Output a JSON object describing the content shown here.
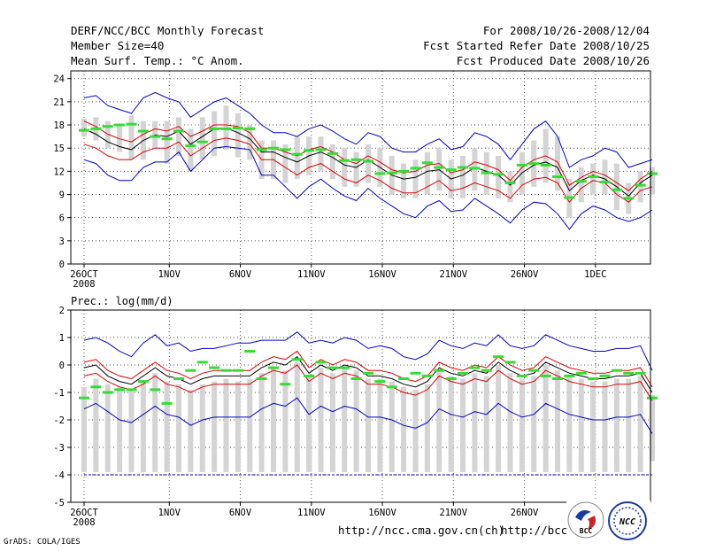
{
  "header": {
    "title": "DERF/NCC/BCC Monthly Forecast",
    "member_size": "Member Size=40",
    "variable": "Mean Surf. Temp.: °C Anom.",
    "forecast_period": "For 2008/10/26-2008/12/04",
    "started_refer_date": "Fcst Started Refer Date 2008/10/25",
    "produced_date": "Fcst Produced Date 2008/10/26"
  },
  "footer": {
    "url_left": "http://ncc.cma.gov.cn(ch)",
    "url_right": "http://bcc.c",
    "credit": "GrADS: COLA/IGES",
    "logo_bcc": "BCC",
    "logo_ncc": "NCC"
  },
  "colors": {
    "spread": "#0000cc",
    "sigma": "#dd0000",
    "mean": "#000000",
    "box": "#d4d4d4",
    "median": "#33dd33",
    "dashed": "#0000aa",
    "grid": "#555555"
  },
  "chart_data": [
    {
      "type": "line",
      "title": "Mean Surf. Temp.: °C Anom.",
      "x_tick_labels": [
        "26OCT",
        "1NOV",
        "6NOV",
        "11NOV",
        "16NOV",
        "21NOV",
        "26NOV",
        "1DEC"
      ],
      "x_tick_days": [
        0,
        6,
        11,
        16,
        21,
        26,
        31,
        36
      ],
      "x_year_label": "2008",
      "days": 40,
      "ylim": [
        0,
        25
      ],
      "yticks": [
        0,
        3,
        6,
        9,
        12,
        15,
        18,
        21,
        24
      ],
      "series": [
        {
          "name": "max",
          "values": [
            13.5,
            13,
            11.5,
            10.8,
            10.8,
            12.5,
            13.2,
            13.2,
            14.5,
            12,
            13.5,
            15,
            15.2,
            15,
            14.8,
            11.5,
            11.5,
            10,
            8.5,
            10,
            11,
            9.8,
            8.8,
            8.2,
            9.8,
            8.5,
            7.5,
            6.5,
            6,
            7.5,
            8.2,
            6.8,
            7,
            8.5,
            7.5,
            6.5,
            5.3,
            7,
            8,
            7.8,
            6.5,
            4.5,
            6.5,
            7.5,
            7,
            6,
            5.5,
            6,
            7
          ]
        },
        {
          "name": "lower",
          "values": [
            15.5,
            15,
            14,
            13.5,
            13.5,
            14.5,
            15,
            15,
            15.8,
            14,
            15,
            16,
            16.3,
            16,
            15.5,
            13.5,
            13.5,
            12.5,
            11.5,
            12.5,
            13,
            12,
            11,
            10.5,
            11.5,
            10.8,
            9.8,
            9.2,
            9.2,
            10,
            10.8,
            9.5,
            9.8,
            10.5,
            10,
            9.5,
            8.5,
            10.2,
            11,
            11.2,
            10.5,
            8,
            9.8,
            10.8,
            10.5,
            9,
            8,
            9.5,
            10
          ]
        },
        {
          "name": "mean",
          "values": [
            17.5,
            16.8,
            15.8,
            15.2,
            14.8,
            16,
            16.7,
            16.5,
            17.2,
            15.5,
            16.5,
            17.5,
            17.6,
            17,
            16.2,
            14.5,
            14.5,
            13.8,
            13.2,
            14,
            14.5,
            13.8,
            12.8,
            12.5,
            13.5,
            12.5,
            11.5,
            11,
            11.2,
            12,
            12.2,
            11,
            11.5,
            12.5,
            12,
            11.5,
            10.2,
            11.8,
            12.8,
            13.2,
            12.5,
            9.5,
            10.8,
            11.5,
            11,
            10,
            8.8,
            10.5,
            11.5
          ]
        },
        {
          "name": "upper",
          "values": [
            18.5,
            17.8,
            16.8,
            16.2,
            15.8,
            16.8,
            17.5,
            17.2,
            17.8,
            16.5,
            17.2,
            18,
            18,
            17.8,
            17,
            15,
            15,
            14.5,
            14,
            14.8,
            15.2,
            14.5,
            13.5,
            13,
            14,
            13.2,
            12.2,
            11.8,
            12,
            12.8,
            13,
            11.8,
            12.2,
            13.2,
            12.8,
            12.2,
            10.8,
            12.5,
            13.5,
            14,
            13.2,
            10.2,
            11.2,
            12,
            11.5,
            10.5,
            9.5,
            11,
            12
          ]
        },
        {
          "name": "min",
          "values": [
            21.5,
            21.8,
            20.5,
            20,
            19.5,
            21.5,
            22.2,
            21.5,
            21,
            19,
            20,
            21,
            21.5,
            20.5,
            19.5,
            18,
            17,
            17,
            16.5,
            17.5,
            18,
            17.2,
            16.2,
            15.5,
            17,
            16.5,
            15,
            14.5,
            14.5,
            15.5,
            16.2,
            14.8,
            15.2,
            17,
            16.5,
            15.5,
            13.5,
            15.5,
            17.5,
            18.5,
            16.5,
            12.5,
            13.5,
            14,
            15,
            14.5,
            12.5,
            13,
            13.5
          ]
        }
      ],
      "boxes_low": [
        16.5,
        16,
        15,
        14.5,
        13.5,
        13.5,
        15,
        13,
        14,
        12,
        13.5,
        14,
        14.8,
        13.8,
        13.5,
        11,
        11,
        10.5,
        11,
        11.5,
        12,
        11,
        10,
        10,
        10.5,
        10,
        9,
        8.5,
        8.5,
        9,
        9.5,
        8.5,
        8.5,
        9.5,
        9,
        8.5,
        8,
        9,
        10,
        10.5,
        9.5,
        6,
        8,
        9,
        9,
        7,
        6.5,
        8,
        9
      ],
      "boxes_high": [
        18.8,
        19,
        18.5,
        18,
        19.2,
        18.5,
        18.5,
        18.5,
        19,
        17.5,
        19,
        19.8,
        20.5,
        19.5,
        18,
        16,
        16,
        15.5,
        16.5,
        16.5,
        16.5,
        15.5,
        15,
        14.5,
        15.5,
        15,
        14,
        13,
        13.5,
        14.5,
        15,
        13.5,
        14,
        15,
        14.5,
        14,
        12,
        14.5,
        16,
        17.5,
        16.5,
        11,
        12.5,
        13,
        13.5,
        13,
        10.5,
        12,
        12.5
      ],
      "median_values": [
        17.3,
        17.5,
        17.8,
        18,
        18.1,
        17.2,
        16.5,
        16.2,
        17.2,
        15.3,
        15.8,
        17.5,
        17.5,
        17.6,
        17.5,
        14.8,
        15,
        14.8,
        14.2,
        14.7,
        14.8,
        14.3,
        13.4,
        13.5,
        13.3,
        11.7,
        11.8,
        12,
        12.4,
        13.1,
        12.5,
        12.2,
        12.5,
        12.4,
        11.8,
        11.6,
        10.5,
        12.8,
        13,
        12.8,
        11.3,
        8.6,
        10.7,
        11.3,
        10.6,
        9.6,
        8.5,
        10.2,
        11.7
      ]
    },
    {
      "type": "line",
      "title": "Prec.: log(mm/d)",
      "x_tick_labels": [
        "26OCT",
        "1NOV",
        "6NOV",
        "11NOV",
        "16NOV",
        "21NOV",
        "26NOV",
        "1DEC"
      ],
      "x_tick_days": [
        0,
        6,
        11,
        16,
        21,
        26,
        31,
        36
      ],
      "x_year_label": "2008",
      "days": 40,
      "ylim": [
        -5,
        2
      ],
      "yticks": [
        -5,
        -4,
        -3,
        -2,
        -1,
        0,
        1,
        2
      ],
      "dashed_level": -4,
      "series": [
        {
          "name": "max",
          "values": [
            0.9,
            1,
            0.8,
            0.5,
            0.3,
            0.8,
            1.1,
            0.7,
            0.8,
            0.5,
            0.6,
            0.6,
            0.7,
            0.8,
            0.8,
            0.9,
            0.9,
            0.9,
            1.2,
            0.8,
            0.9,
            0.8,
            1,
            0.9,
            0.6,
            0.7,
            0.6,
            0.3,
            0.2,
            0.4,
            0.9,
            0.7,
            0.6,
            0.8,
            0.7,
            1.1,
            0.7,
            0.6,
            0.7,
            1.1,
            0.9,
            0.7,
            0.6,
            0.5,
            0.5,
            0.6,
            0.6,
            0.7,
            -0.2
          ]
        },
        {
          "name": "upper",
          "values": [
            0.1,
            0.2,
            -0.2,
            -0.4,
            -0.5,
            -0.2,
            0.1,
            -0.2,
            -0.3,
            -0.5,
            -0.3,
            -0.2,
            -0.2,
            -0.2,
            -0.2,
            0.1,
            0.3,
            0.2,
            0.5,
            -0.1,
            0.2,
            0,
            0.2,
            0.1,
            -0.2,
            -0.2,
            -0.3,
            -0.5,
            -0.6,
            -0.4,
            0.1,
            -0.1,
            -0.2,
            0,
            -0.1,
            0.3,
            0,
            -0.2,
            -0.1,
            0.3,
            0.1,
            -0.1,
            -0.2,
            -0.3,
            -0.3,
            -0.2,
            -0.2,
            -0.1,
            -0.8
          ]
        },
        {
          "name": "mean",
          "values": [
            -0.1,
            0,
            -0.4,
            -0.6,
            -0.7,
            -0.4,
            -0.1,
            -0.4,
            -0.5,
            -0.7,
            -0.5,
            -0.4,
            -0.4,
            -0.4,
            -0.4,
            -0.1,
            0.1,
            0,
            0.3,
            -0.3,
            0,
            -0.2,
            0,
            -0.1,
            -0.4,
            -0.4,
            -0.5,
            -0.7,
            -0.8,
            -0.6,
            -0.1,
            -0.3,
            -0.4,
            -0.2,
            -0.3,
            0.1,
            -0.2,
            -0.4,
            -0.3,
            0.1,
            -0.1,
            -0.3,
            -0.4,
            -0.5,
            -0.5,
            -0.4,
            -0.4,
            -0.3,
            -1
          ]
        },
        {
          "name": "lower",
          "values": [
            -0.4,
            -0.3,
            -0.6,
            -0.8,
            -0.9,
            -0.7,
            -0.4,
            -0.7,
            -0.8,
            -1,
            -0.8,
            -0.7,
            -0.7,
            -0.7,
            -0.7,
            -0.4,
            -0.2,
            -0.3,
            0,
            -0.6,
            -0.3,
            -0.5,
            -0.3,
            -0.4,
            -0.7,
            -0.7,
            -0.8,
            -1,
            -1.1,
            -0.9,
            -0.4,
            -0.6,
            -0.7,
            -0.5,
            -0.6,
            -0.2,
            -0.5,
            -0.7,
            -0.6,
            -0.2,
            -0.4,
            -0.6,
            -0.7,
            -0.8,
            -0.8,
            -0.7,
            -0.7,
            -0.6,
            -1.3
          ]
        },
        {
          "name": "min",
          "values": [
            -1.6,
            -1.4,
            -1.7,
            -2,
            -2.1,
            -1.8,
            -1.5,
            -1.8,
            -1.9,
            -2.2,
            -2,
            -1.9,
            -1.9,
            -1.9,
            -1.9,
            -1.6,
            -1.4,
            -1.5,
            -1.2,
            -1.8,
            -1.5,
            -1.7,
            -1.5,
            -1.6,
            -1.9,
            -1.9,
            -2,
            -2.2,
            -2.3,
            -2.1,
            -1.6,
            -1.8,
            -1.9,
            -1.7,
            -1.8,
            -1.4,
            -1.7,
            -1.9,
            -1.8,
            -1.4,
            -1.6,
            -1.8,
            -1.9,
            -2,
            -2,
            -1.9,
            -1.9,
            -1.8,
            -2.5
          ]
        }
      ],
      "boxes_low": [
        -3.9,
        -3.9,
        -3.9,
        -3.9,
        -3.9,
        -3.9,
        -3.9,
        -3.9,
        -3.9,
        -3.9,
        -3.9,
        -3.9,
        -3.9,
        -3.9,
        -3.9,
        -3.9,
        -3.9,
        -3.9,
        -3.9,
        -3.9,
        -3.9,
        -3.9,
        -3.9,
        -3.9,
        -3.9,
        -3.9,
        -3.9,
        -3.9,
        -3.9,
        -3.9,
        -3.9,
        -3.9,
        -3.9,
        -3.9,
        -3.9,
        -3.9,
        -3.9,
        -3.9,
        -3.9,
        -3.9,
        -3.9,
        -3.9,
        -3.9,
        -3.9,
        -3.9,
        -3.9,
        -3.9,
        -3.9,
        -3.5
      ],
      "boxes_high": [
        -0.8,
        -0.5,
        -0.7,
        -0.8,
        -0.9,
        -0.6,
        -0.3,
        -0.6,
        -0.7,
        -0.9,
        -0.7,
        -0.6,
        -0.5,
        -0.6,
        -0.5,
        -0.3,
        -0.1,
        -0.2,
        0.1,
        -0.4,
        -0.1,
        -0.3,
        -0.1,
        -0.2,
        -0.5,
        -0.5,
        -0.6,
        -0.8,
        -0.9,
        -0.7,
        -0.2,
        -0.4,
        -0.5,
        -0.3,
        -0.4,
        0,
        -0.3,
        -0.5,
        -0.4,
        0,
        -0.2,
        -0.4,
        -0.5,
        -0.6,
        -0.6,
        -0.5,
        -0.5,
        -0.4,
        -1.1
      ],
      "median_values": [
        -1.2,
        -0.8,
        -1,
        -0.9,
        -0.9,
        -0.6,
        -0.9,
        -1.4,
        -0.5,
        -0.2,
        0.1,
        -0.1,
        -0.2,
        -0.2,
        0.5,
        -0.5,
        -0.1,
        -0.7,
        0.2,
        -0.4,
        0.1,
        -0.1,
        -0.1,
        -0.5,
        -0.3,
        -0.6,
        -0.8,
        -0.5,
        -0.3,
        -0.4,
        -0.2,
        -0.5,
        -0.3,
        -0.1,
        -0.2,
        0.3,
        0.1,
        -0.4,
        -0.2,
        -0.4,
        -0.5,
        -0.4,
        -0.3,
        -0.5,
        -0.4,
        -0.2,
        -0.3,
        -0.3,
        -1.2
      ]
    }
  ]
}
